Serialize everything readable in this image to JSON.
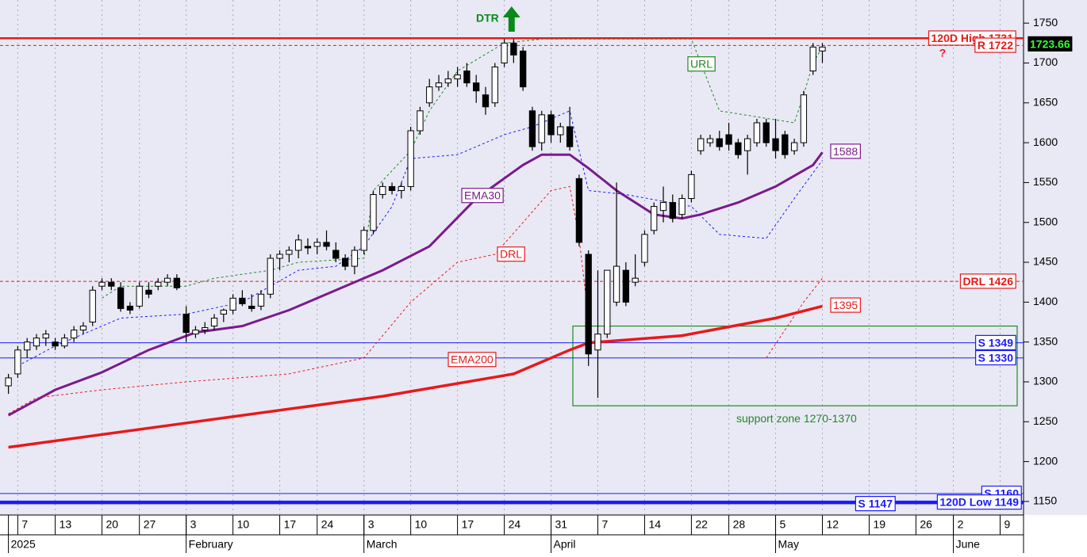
{
  "chart_data": {
    "type": "candlestick",
    "title": "DTR",
    "xlim": [
      -0.9,
      108.5
    ],
    "ylim": [
      1133,
      1779
    ],
    "yticks": [
      1150,
      1200,
      1250,
      1300,
      1350,
      1400,
      1450,
      1500,
      1550,
      1600,
      1650,
      1700,
      1750
    ],
    "xticks": [
      {
        "value": 1,
        "label": "7"
      },
      {
        "value": 5,
        "label": "13"
      },
      {
        "value": 10,
        "label": "20"
      },
      {
        "value": 14,
        "label": "27"
      },
      {
        "value": 19,
        "label": "3"
      },
      {
        "value": 24,
        "label": "10"
      },
      {
        "value": 29,
        "label": "17"
      },
      {
        "value": 33,
        "label": "24"
      },
      {
        "value": 38,
        "label": "3"
      },
      {
        "value": 43,
        "label": "10"
      },
      {
        "value": 48,
        "label": "17"
      },
      {
        "value": 53,
        "label": "24"
      },
      {
        "value": 58,
        "label": "31"
      },
      {
        "value": 63,
        "label": "7"
      },
      {
        "value": 68,
        "label": "14"
      },
      {
        "value": 73,
        "label": "22"
      },
      {
        "value": 77,
        "label": "28"
      },
      {
        "value": 82,
        "label": "5"
      },
      {
        "value": 87,
        "label": "12"
      },
      {
        "value": 92,
        "label": "19"
      },
      {
        "value": 97,
        "label": "26"
      },
      {
        "value": 101,
        "label": "2"
      },
      {
        "value": 106,
        "label": "9"
      }
    ],
    "month_ticks": [
      {
        "value": 0,
        "label": "2025"
      },
      {
        "value": 19,
        "label": "February"
      },
      {
        "value": 38,
        "label": "March"
      },
      {
        "value": 58,
        "label": "April"
      },
      {
        "value": 82,
        "label": "May"
      },
      {
        "value": 101,
        "label": "June"
      }
    ],
    "grid": true,
    "up_color": "#ffffff",
    "down_color": "#000000",
    "x": [
      0,
      1,
      2,
      3,
      4,
      5,
      6,
      7,
      8,
      9,
      10,
      11,
      12,
      13,
      14,
      15,
      16,
      17,
      18,
      19,
      20,
      21,
      22,
      23,
      24,
      25,
      26,
      27,
      28,
      29,
      30,
      31,
      32,
      33,
      34,
      35,
      36,
      37,
      38,
      39,
      40,
      41,
      42,
      43,
      44,
      45,
      46,
      47,
      48,
      49,
      50,
      51,
      52,
      53,
      54,
      55,
      56,
      57,
      58,
      59,
      60,
      61,
      62,
      63,
      64,
      65,
      66,
      67,
      68,
      69,
      70,
      71,
      72,
      73,
      74,
      75,
      76,
      77,
      78,
      79,
      80,
      81,
      82,
      83,
      84,
      85,
      86,
      87
    ],
    "open": [
      1295,
      1310,
      1340,
      1345,
      1355,
      1350,
      1345,
      1355,
      1365,
      1375,
      1420,
      1425,
      1418,
      1395,
      1395,
      1415,
      1420,
      1425,
      1430,
      1385,
      1360,
      1365,
      1370,
      1385,
      1390,
      1405,
      1395,
      1395,
      1410,
      1455,
      1460,
      1465,
      1470,
      1470,
      1475,
      1465,
      1455,
      1445,
      1465,
      1490,
      1535,
      1545,
      1540,
      1545,
      1615,
      1650,
      1670,
      1675,
      1680,
      1690,
      1675,
      1660,
      1650,
      1700,
      1725,
      1715,
      1640,
      1600,
      1635,
      1610,
      1620,
      1555,
      1460,
      1340,
      1360,
      1400,
      1440,
      1425,
      1450,
      1490,
      1515,
      1525,
      1510,
      1530,
      1590,
      1600,
      1605,
      1610,
      1600,
      1590,
      1600,
      1625,
      1605,
      1610,
      1590,
      1600,
      1690,
      1715
    ],
    "high": [
      1310,
      1345,
      1355,
      1360,
      1365,
      1355,
      1360,
      1370,
      1375,
      1420,
      1430,
      1430,
      1425,
      1400,
      1425,
      1425,
      1430,
      1435,
      1435,
      1395,
      1370,
      1375,
      1385,
      1392,
      1410,
      1415,
      1410,
      1415,
      1460,
      1465,
      1470,
      1485,
      1480,
      1480,
      1490,
      1475,
      1460,
      1470,
      1495,
      1540,
      1550,
      1550,
      1550,
      1620,
      1645,
      1680,
      1685,
      1690,
      1695,
      1700,
      1685,
      1670,
      1700,
      1730,
      1730,
      1720,
      1645,
      1640,
      1640,
      1625,
      1645,
      1560,
      1465,
      1440,
      1440,
      1550,
      1450,
      1460,
      1490,
      1525,
      1545,
      1535,
      1535,
      1565,
      1610,
      1610,
      1615,
      1625,
      1605,
      1610,
      1630,
      1630,
      1630,
      1615,
      1605,
      1665,
      1725,
      1725
    ],
    "low": [
      1285,
      1305,
      1330,
      1340,
      1345,
      1340,
      1342,
      1350,
      1360,
      1370,
      1415,
      1415,
      1388,
      1385,
      1392,
      1405,
      1415,
      1420,
      1415,
      1350,
      1355,
      1360,
      1365,
      1375,
      1385,
      1395,
      1388,
      1390,
      1405,
      1440,
      1450,
      1455,
      1460,
      1460,
      1465,
      1450,
      1440,
      1435,
      1460,
      1485,
      1530,
      1535,
      1530,
      1540,
      1610,
      1645,
      1665,
      1670,
      1670,
      1670,
      1650,
      1635,
      1645,
      1695,
      1700,
      1665,
      1590,
      1590,
      1600,
      1600,
      1590,
      1470,
      1320,
      1280,
      1355,
      1395,
      1395,
      1420,
      1445,
      1485,
      1500,
      1500,
      1505,
      1525,
      1585,
      1595,
      1590,
      1590,
      1580,
      1560,
      1595,
      1595,
      1580,
      1580,
      1585,
      1595,
      1685,
      1700
    ],
    "close": [
      1305,
      1340,
      1350,
      1355,
      1360,
      1345,
      1355,
      1365,
      1370,
      1415,
      1425,
      1420,
      1392,
      1390,
      1420,
      1410,
      1425,
      1430,
      1418,
      1362,
      1365,
      1368,
      1380,
      1390,
      1405,
      1398,
      1392,
      1410,
      1455,
      1460,
      1465,
      1478,
      1468,
      1475,
      1470,
      1455,
      1445,
      1465,
      1490,
      1535,
      1545,
      1540,
      1545,
      1615,
      1640,
      1670,
      1675,
      1680,
      1685,
      1675,
      1665,
      1645,
      1695,
      1725,
      1710,
      1670,
      1595,
      1635,
      1610,
      1620,
      1595,
      1475,
      1335,
      1360,
      1440,
      1445,
      1400,
      1430,
      1485,
      1520,
      1525,
      1505,
      1530,
      1560,
      1605,
      1605,
      1595,
      1598,
      1585,
      1605,
      1625,
      1600,
      1590,
      1585,
      1600,
      1660,
      1720,
      1720
    ],
    "last_price": 1723.66,
    "overlays": [
      {
        "name": "EMA30",
        "color": "#7b1a8c",
        "style": "solid",
        "width": 3,
        "end_label": "1588",
        "x": [
          0,
          5,
          10,
          15,
          20,
          25,
          30,
          35,
          40,
          45,
          50,
          55,
          57,
          60,
          62,
          65,
          69,
          72,
          74,
          78,
          82,
          86,
          87
        ],
        "values": [
          1258,
          1290,
          1312,
          1340,
          1362,
          1370,
          1390,
          1415,
          1440,
          1470,
          1530,
          1572,
          1585,
          1585,
          1568,
          1540,
          1510,
          1505,
          1510,
          1525,
          1545,
          1572,
          1588
        ]
      },
      {
        "name": "EMA200",
        "color": "#e8191a",
        "style": "solid",
        "width": 3.5,
        "end_label": "1395",
        "x": [
          0,
          20,
          40,
          54,
          60,
          62,
          72,
          82,
          87
        ],
        "values": [
          1218,
          1250,
          1282,
          1310,
          1340,
          1349,
          1358,
          1380,
          1395
        ]
      },
      {
        "name": "URL",
        "color": "#1f8a1f",
        "style": "dashed",
        "width": 1,
        "x": [
          10,
          12,
          19,
          22,
          28,
          31,
          38,
          39,
          43,
          45,
          48,
          53,
          57,
          73,
          76,
          84,
          85,
          86,
          87
        ],
        "values": [
          1405,
          1420,
          1420,
          1430,
          1440,
          1450,
          1455,
          1540,
          1590,
          1640,
          1690,
          1725,
          1730,
          1730,
          1640,
          1625,
          1660,
          1700,
          1720
        ]
      },
      {
        "color": "#1a1aff",
        "style": "dashed",
        "width": 1,
        "x": [
          1,
          5,
          12,
          19,
          25,
          31,
          35,
          38,
          41,
          43,
          48,
          53,
          56,
          60,
          62,
          66,
          73,
          76,
          81,
          84,
          87
        ],
        "values": [
          1320,
          1345,
          1380,
          1385,
          1400,
          1440,
          1445,
          1470,
          1520,
          1580,
          1585,
          1610,
          1620,
          1640,
          1540,
          1535,
          1520,
          1485,
          1480,
          1530,
          1578
        ]
      },
      {
        "name": "DRL",
        "color": "#e8191a",
        "style": "dashed",
        "width": 1,
        "x": [
          0,
          3,
          10,
          19,
          30,
          38,
          43,
          48,
          52,
          58,
          60,
          61,
          62,
          63,
          81,
          85,
          87
        ],
        "values": [
          1260,
          1280,
          1290,
          1300,
          1310,
          1330,
          1400,
          1450,
          1460,
          1540,
          1545,
          1480,
          1380,
          null,
          1330,
          1400,
          1430
        ]
      }
    ],
    "levels": [
      {
        "label": "120D High 1731",
        "value": 1731,
        "color": "#e8191a",
        "style": "solid",
        "width": 2.5
      },
      {
        "label": "R 1722",
        "value": 1722,
        "color": "#e8191a",
        "style": "dashed",
        "width": 1
      },
      {
        "label": "DRL 1426",
        "value": 1426,
        "color": "#e8191a",
        "style": "dashed",
        "width": 1
      },
      {
        "label": "S 1349",
        "value": 1349,
        "color": "#1a1aff",
        "style": "solid",
        "width": 1
      },
      {
        "label": "S 1330",
        "value": 1330,
        "color": "#1a1aff",
        "style": "solid",
        "width": 1
      },
      {
        "label": "S 1160",
        "value": 1160,
        "color": "#1a1aff",
        "style": "solid",
        "width": 1
      },
      {
        "label": "S 1147",
        "value": 1147,
        "color": "#1a1aff",
        "style": "solid",
        "width": 1
      },
      {
        "label": "120D Low 1149",
        "value": 1149,
        "color": "#1a1aff",
        "style": "solid",
        "width": 4
      }
    ],
    "support_zone": {
      "label": "support zone 1270-1370",
      "low": 1270,
      "high": 1370,
      "color": "#1f8a1f"
    },
    "annotations": [
      {
        "text": "?",
        "color": "#e8191a"
      }
    ]
  }
}
